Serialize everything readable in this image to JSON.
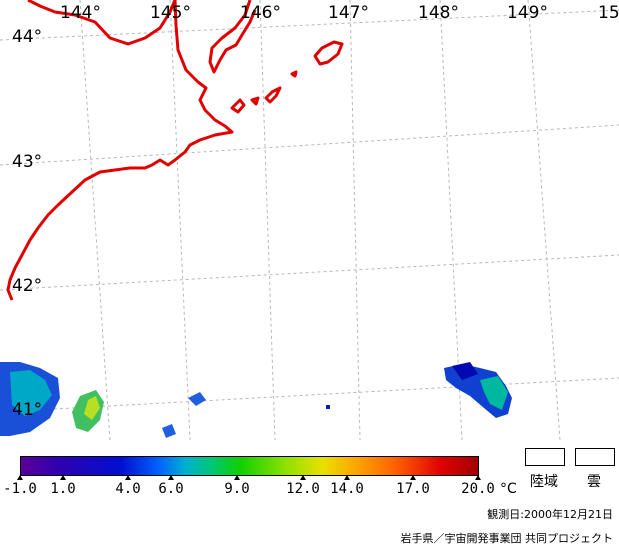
{
  "map": {
    "lon_labels": [
      "144°",
      "145°",
      "146°",
      "147°",
      "148°",
      "149°",
      "15"
    ],
    "lat_labels": [
      "44°",
      "43°",
      "42°",
      "41°"
    ]
  },
  "colorbar": {
    "ticks": [
      "-1.0",
      "1.0",
      "4.0",
      "6.0",
      "9.0",
      "12.0",
      "14.0",
      "17.0",
      "20.0"
    ],
    "unit": "°C"
  },
  "legend": {
    "land_label": "陸域",
    "cloud_label": "雲"
  },
  "credits": {
    "date": "観測日:2000年12月21日",
    "org": "岩手県／宇宙開発事業団 共同プロジェクト"
  },
  "colors": {
    "coastline": "#e00000",
    "grid": "#b0b0b0"
  }
}
